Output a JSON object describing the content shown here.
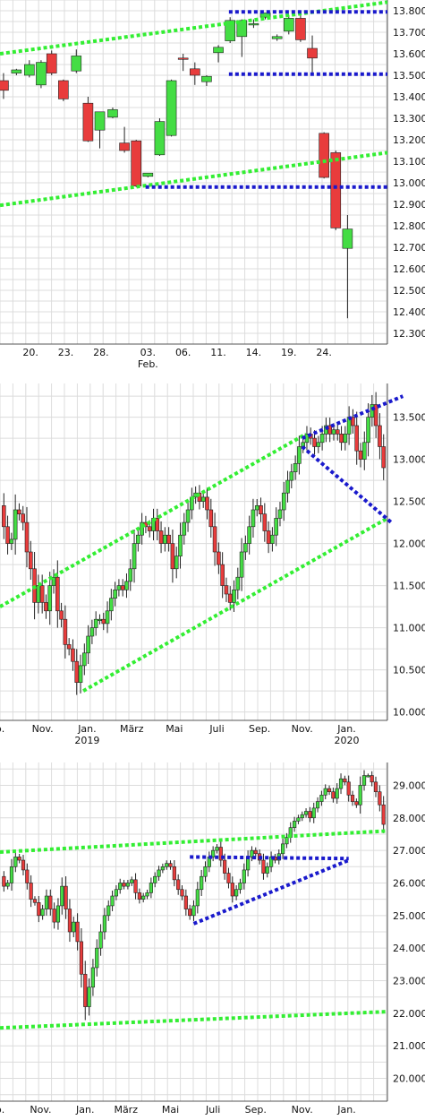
{
  "colors": {
    "up": "#44dd44",
    "down": "#e83c3c",
    "wick": "#222222",
    "trend_green": "#33ee33",
    "trend_blue": "#1a1acc",
    "grid": "#dcdcdc"
  },
  "chart_data": [
    {
      "type": "candlestick",
      "title": "",
      "ylim": [
        12250,
        13850
      ],
      "xlim": [
        0,
        33
      ],
      "yticks": [
        12300,
        12400,
        12500,
        12600,
        12700,
        12800,
        12900,
        13000,
        13100,
        13200,
        13300,
        13400,
        13500,
        13600,
        13700,
        13800
      ],
      "ytick_labels": [
        "12.300",
        "12.400",
        "12.500",
        "12.600",
        "12.700",
        "12.800",
        "12.900",
        "13.000",
        "13.100",
        "13.200",
        "13.300",
        "13.400",
        "13.500",
        "13.600",
        "13.700",
        "13.800"
      ],
      "xticks": [
        {
          "x": 2.6,
          "label": "20."
        },
        {
          "x": 5.6,
          "label": "23."
        },
        {
          "x": 8.6,
          "label": "28."
        },
        {
          "x": 12.6,
          "label": "03.",
          "sublabel": "Feb."
        },
        {
          "x": 15.6,
          "label": "06."
        },
        {
          "x": 18.6,
          "label": "11."
        },
        {
          "x": 21.6,
          "label": "14."
        },
        {
          "x": 24.6,
          "label": "19."
        },
        {
          "x": 27.6,
          "label": "24."
        }
      ],
      "candles": [
        {
          "x": 0.3,
          "o": 13475,
          "h": 13510,
          "c": 13430,
          "l": 13390
        },
        {
          "x": 1.4,
          "o": 13510,
          "h": 13530,
          "c": 13525,
          "l": 13500
        },
        {
          "x": 2.5,
          "o": 13500,
          "h": 13570,
          "c": 13550,
          "l": 13490
        },
        {
          "x": 3.5,
          "o": 13455,
          "h": 13570,
          "c": 13560,
          "l": 13440
        },
        {
          "x": 4.4,
          "o": 13600,
          "h": 13615,
          "c": 13510,
          "l": 13500
        },
        {
          "x": 5.4,
          "o": 13475,
          "h": 13480,
          "c": 13390,
          "l": 13380
        },
        {
          "x": 6.5,
          "o": 13520,
          "h": 13620,
          "c": 13590,
          "l": 13510
        },
        {
          "x": 7.5,
          "o": 13370,
          "h": 13400,
          "c": 13195,
          "l": 13190
        },
        {
          "x": 8.5,
          "o": 13245,
          "h": 13325,
          "c": 13330,
          "l": 13160
        },
        {
          "x": 9.6,
          "o": 13305,
          "h": 13350,
          "c": 13340,
          "l": 13300
        },
        {
          "x": 10.6,
          "o": 13185,
          "h": 13260,
          "c": 13150,
          "l": 13140
        },
        {
          "x": 11.6,
          "o": 13195,
          "h": 13200,
          "c": 12985,
          "l": 12980
        },
        {
          "x": 12.6,
          "o": 13030,
          "h": 13040,
          "c": 13045,
          "l": 13025
        },
        {
          "x": 13.6,
          "o": 13130,
          "h": 13300,
          "c": 13285,
          "l": 13125
        },
        {
          "x": 14.6,
          "o": 13220,
          "h": 13480,
          "c": 13475,
          "l": 13215
        },
        {
          "x": 15.6,
          "o": 13580,
          "h": 13600,
          "c": 13575,
          "l": 13520
        },
        {
          "x": 16.6,
          "o": 13530,
          "h": 13560,
          "c": 13500,
          "l": 13455
        },
        {
          "x": 17.6,
          "o": 13470,
          "h": 13500,
          "c": 13495,
          "l": 13450
        },
        {
          "x": 18.6,
          "o": 13605,
          "h": 13640,
          "c": 13630,
          "l": 13560
        },
        {
          "x": 19.6,
          "o": 13660,
          "h": 13770,
          "c": 13755,
          "l": 13650
        },
        {
          "x": 20.6,
          "o": 13680,
          "h": 13760,
          "c": 13755,
          "l": 13585
        },
        {
          "x": 21.6,
          "o": 13735,
          "h": 13760,
          "c": 13740,
          "l": 13720
        },
        {
          "x": 22.6,
          "o": 13770,
          "h": 13785,
          "c": 13790,
          "l": 13760
        },
        {
          "x": 23.6,
          "o": 13670,
          "h": 13690,
          "c": 13680,
          "l": 13660
        },
        {
          "x": 24.6,
          "o": 13705,
          "h": 13780,
          "c": 13765,
          "l": 13690
        },
        {
          "x": 25.6,
          "o": 13765,
          "h": 13800,
          "c": 13665,
          "l": 13655
        },
        {
          "x": 26.6,
          "o": 13625,
          "h": 13685,
          "c": 13580,
          "l": 13505
        },
        {
          "x": 27.6,
          "o": 13230,
          "h": 13235,
          "c": 13025,
          "l": 13020
        },
        {
          "x": 28.6,
          "o": 13140,
          "h": 13150,
          "c": 12790,
          "l": 12780
        },
        {
          "x": 29.6,
          "o": 12695,
          "h": 12850,
          "c": 12785,
          "l": 12370
        }
      ],
      "trendlines": [
        {
          "color": "trend_green",
          "x0": 0,
          "y0": 13600,
          "x1": 33,
          "y1": 13840
        },
        {
          "color": "trend_green",
          "x0": 0,
          "y0": 12895,
          "x1": 33,
          "y1": 13140
        },
        {
          "color": "trend_blue",
          "x0": 19.5,
          "y0": 13795,
          "x1": 33,
          "y1": 13795
        },
        {
          "color": "trend_blue",
          "x0": 19.5,
          "y0": 13505,
          "x1": 33,
          "y1": 13505
        },
        {
          "color": "trend_blue",
          "x0": 12.4,
          "y0": 12980,
          "x1": 33,
          "y1": 12980
        }
      ]
    },
    {
      "type": "candlestick",
      "title": "",
      "ylim": [
        9900,
        13900
      ],
      "xlim": [
        0,
        100
      ],
      "yticks": [
        10000,
        10500,
        11000,
        11500,
        12000,
        12500,
        13000,
        13500
      ],
      "ytick_labels": [
        "10.000",
        "10.500",
        "11.000",
        "11.500",
        "12.000",
        "12.500",
        "13.000",
        "13.500"
      ],
      "xticks": [
        {
          "x": 0,
          "label": "p."
        },
        {
          "x": 11,
          "label": "Nov."
        },
        {
          "x": 22.5,
          "label": "Jan.",
          "sublabel": "2019"
        },
        {
          "x": 34,
          "label": "März"
        },
        {
          "x": 45,
          "label": "Mai"
        },
        {
          "x": 56,
          "label": "Juli"
        },
        {
          "x": 67,
          "label": "Sep."
        },
        {
          "x": 78,
          "label": "Nov."
        },
        {
          "x": 89.5,
          "label": "Jan.",
          "sublabel": "2020"
        }
      ],
      "close_series": [
        12450,
        12200,
        12000,
        12050,
        12400,
        12350,
        12250,
        11900,
        11700,
        11300,
        11500,
        11300,
        11200,
        11500,
        11600,
        11200,
        11100,
        10800,
        10750,
        10600,
        10350,
        10550,
        10700,
        10900,
        11000,
        11100,
        11100,
        11050,
        11200,
        11350,
        11450,
        11500,
        11450,
        11550,
        11700,
        12000,
        12100,
        12250,
        12200,
        12150,
        12300,
        12150,
        12000,
        12100,
        12000,
        11700,
        11850,
        12100,
        12250,
        12400,
        12550,
        12600,
        12500,
        12550,
        12400,
        12200,
        11900,
        11750,
        11500,
        11400,
        11300,
        11450,
        11600,
        11900,
        12000,
        12200,
        12400,
        12450,
        12350,
        12150,
        12000,
        12100,
        12300,
        12400,
        12600,
        12750,
        12850,
        12950,
        13150,
        13200,
        13300,
        13250,
        13150,
        13200,
        13300,
        13400,
        13300,
        13350,
        13300,
        13200,
        13300,
        13500,
        13400,
        13100,
        13000,
        13200,
        13500,
        13650,
        13400,
        13150,
        12900
      ],
      "trendlines": [
        {
          "color": "trend_green",
          "x0": 0,
          "y0": 11250,
          "x1": 79,
          "y1": 13300
        },
        {
          "color": "trend_green",
          "x0": 21.5,
          "y0": 10250,
          "x1": 100,
          "y1": 12300
        },
        {
          "color": "trend_blue",
          "x0": 78,
          "y0": 13250,
          "x1": 104,
          "y1": 13750
        },
        {
          "color": "trend_blue",
          "x0": 78,
          "y0": 13150,
          "x1": 101,
          "y1": 12250
        }
      ]
    },
    {
      "type": "candlestick",
      "title": "",
      "ylim": [
        19300,
        29700
      ],
      "xlim": [
        0,
        100
      ],
      "yticks": [
        20000,
        21000,
        22000,
        23000,
        24000,
        25000,
        26000,
        27000,
        28000,
        29000
      ],
      "ytick_labels": [
        "20.000",
        "21.000",
        "22.000",
        "23.000",
        "24.000",
        "25.000",
        "26.000",
        "27.000",
        "28.000",
        "29.000"
      ],
      "xticks": [
        {
          "x": 0,
          "label": "p."
        },
        {
          "x": 10.5,
          "label": "Nov."
        },
        {
          "x": 22,
          "label": "Jan."
        },
        {
          "x": 32.5,
          "label": "März"
        },
        {
          "x": 44,
          "label": "Mai"
        },
        {
          "x": 55,
          "label": "Juli"
        },
        {
          "x": 66,
          "label": "Sep."
        },
        {
          "x": 78,
          "label": "Nov."
        },
        {
          "x": 89.5,
          "label": "Jan."
        }
      ],
      "close_series": [
        26200,
        25900,
        26000,
        26500,
        26800,
        26700,
        26400,
        26000,
        25500,
        25400,
        25000,
        25200,
        25600,
        25200,
        24800,
        25300,
        25900,
        25200,
        24500,
        24800,
        24200,
        23200,
        22200,
        22800,
        23400,
        24000,
        24500,
        25000,
        25300,
        25600,
        25800,
        26000,
        25900,
        26000,
        26100,
        25700,
        25500,
        25600,
        25700,
        26000,
        26200,
        26400,
        26500,
        26600,
        26500,
        26100,
        25800,
        25600,
        25200,
        25000,
        25300,
        25800,
        26200,
        26500,
        26800,
        27000,
        27100,
        26700,
        26300,
        26000,
        25600,
        25800,
        26000,
        26400,
        26800,
        27000,
        26900,
        26700,
        26300,
        26500,
        26800,
        26700,
        26900,
        27200,
        27400,
        27700,
        27900,
        28000,
        28100,
        28200,
        28000,
        28300,
        28500,
        28700,
        28900,
        28800,
        28600,
        28900,
        29200,
        29100,
        28700,
        28500,
        28400,
        29000,
        29300,
        29300,
        29100,
        28800,
        28400,
        27800
      ],
      "trendlines": [
        {
          "color": "trend_green",
          "x0": 0,
          "y0": 26950,
          "x1": 100,
          "y1": 27600
        },
        {
          "color": "trend_green",
          "x0": 0,
          "y0": 21550,
          "x1": 100,
          "y1": 22050
        },
        {
          "color": "trend_blue",
          "x0": 49,
          "y0": 26800,
          "x1": 90,
          "y1": 26750
        },
        {
          "color": "trend_blue",
          "x0": 50,
          "y0": 24750,
          "x1": 90,
          "y1": 26700
        }
      ]
    }
  ]
}
